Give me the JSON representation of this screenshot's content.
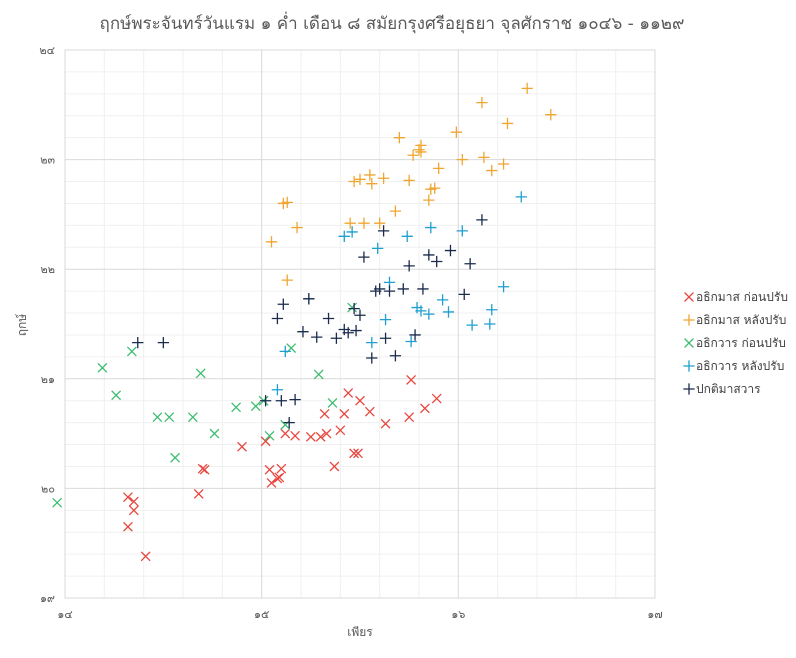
{
  "chart_data": {
    "type": "scatter",
    "title": "ฤกษ์พระจันทร์วันแรม ๑ ค่ำ เดือน ๘ สมัยกรุงศรีอยุธยา จุลศักราช ๑๐๔๖ - ๑๑๒๙",
    "xlabel": "เพียร",
    "ylabel": "ฤกษ์",
    "xlim": [
      14,
      17
    ],
    "ylim": [
      19,
      24
    ],
    "x_ticks": [
      14,
      15,
      16,
      17
    ],
    "x_tick_labels": [
      "๑๔",
      "๑๕",
      "๑๖",
      "๑๗"
    ],
    "y_ticks": [
      19,
      20,
      21,
      22,
      23,
      24
    ],
    "y_tick_labels": [
      "๑๙",
      "๒๐",
      "๒๑",
      "๒๒",
      "๒๓",
      "๒๔"
    ],
    "grid": true,
    "legend_position": "right",
    "series": [
      {
        "name": "อธิกมาส ก่อนปรับ",
        "marker": "x",
        "color": "#e8473f",
        "points": [
          [
            14.32,
            19.65
          ],
          [
            14.35,
            19.8
          ],
          [
            14.41,
            19.38
          ],
          [
            14.32,
            19.92
          ],
          [
            14.68,
            19.95
          ],
          [
            14.7,
            20.18
          ],
          [
            14.71,
            20.17
          ],
          [
            14.9,
            20.38
          ],
          [
            15.02,
            20.43
          ],
          [
            15.04,
            20.17
          ],
          [
            15.05,
            20.05
          ],
          [
            15.08,
            20.09
          ],
          [
            15.09,
            20.1
          ],
          [
            15.1,
            20.18
          ],
          [
            15.12,
            20.5
          ],
          [
            15.17,
            20.48
          ],
          [
            15.25,
            20.47
          ],
          [
            15.3,
            20.47
          ],
          [
            15.32,
            20.68
          ],
          [
            15.33,
            20.5
          ],
          [
            15.37,
            20.2
          ],
          [
            15.4,
            20.53
          ],
          [
            15.42,
            20.68
          ],
          [
            15.44,
            20.87
          ],
          [
            15.47,
            20.32
          ],
          [
            15.49,
            20.32
          ],
          [
            15.5,
            20.8
          ],
          [
            15.55,
            20.7
          ],
          [
            15.63,
            20.59
          ],
          [
            15.75,
            20.65
          ],
          [
            15.83,
            20.73
          ],
          [
            15.89,
            20.82
          ],
          [
            15.76,
            20.99
          ],
          [
            14.35,
            19.88
          ]
        ]
      },
      {
        "name": "อธิกมาส หลังปรับ",
        "marker": "+",
        "color": "#f0a530",
        "points": [
          [
            15.05,
            22.25
          ],
          [
            15.11,
            22.6
          ],
          [
            15.13,
            22.61
          ],
          [
            15.18,
            22.38
          ],
          [
            15.13,
            21.9
          ],
          [
            15.45,
            22.42
          ],
          [
            15.47,
            22.8
          ],
          [
            15.5,
            22.82
          ],
          [
            15.52,
            22.42
          ],
          [
            15.55,
            22.86
          ],
          [
            15.56,
            22.78
          ],
          [
            15.62,
            22.83
          ],
          [
            15.68,
            22.53
          ],
          [
            15.7,
            23.2
          ],
          [
            15.75,
            22.81
          ],
          [
            15.77,
            23.04
          ],
          [
            15.8,
            23.09
          ],
          [
            15.81,
            23.07
          ],
          [
            15.85,
            22.63
          ],
          [
            15.86,
            22.73
          ],
          [
            15.88,
            22.74
          ],
          [
            15.9,
            22.92
          ],
          [
            15.99,
            23.25
          ],
          [
            16.02,
            23.0
          ],
          [
            16.12,
            23.52
          ],
          [
            16.13,
            23.02
          ],
          [
            16.17,
            22.9
          ],
          [
            16.23,
            22.96
          ],
          [
            16.25,
            23.33
          ],
          [
            16.35,
            23.65
          ],
          [
            16.47,
            23.41
          ],
          [
            15.6,
            22.42
          ],
          [
            15.81,
            23.13
          ]
        ]
      },
      {
        "name": "อธิกวาร ก่อนปรับ",
        "marker": "x",
        "color": "#3dbd72",
        "points": [
          [
            13.96,
            19.87
          ],
          [
            14.19,
            21.1
          ],
          [
            14.26,
            20.85
          ],
          [
            14.34,
            21.25
          ],
          [
            14.47,
            20.65
          ],
          [
            14.53,
            20.65
          ],
          [
            14.56,
            20.28
          ],
          [
            14.65,
            20.65
          ],
          [
            14.69,
            21.05
          ],
          [
            14.76,
            20.5
          ],
          [
            14.87,
            20.74
          ],
          [
            14.97,
            20.75
          ],
          [
            15.01,
            20.8
          ],
          [
            15.12,
            20.58
          ],
          [
            15.15,
            21.28
          ],
          [
            15.29,
            21.04
          ],
          [
            15.46,
            21.65
          ],
          [
            15.04,
            20.48
          ],
          [
            15.36,
            20.78
          ]
        ]
      },
      {
        "name": "อธิกวาร หลังปรับ",
        "marker": "+",
        "color": "#1e9fd0",
        "points": [
          [
            15.08,
            20.9
          ],
          [
            15.12,
            21.25
          ],
          [
            15.24,
            21.73
          ],
          [
            15.56,
            21.33
          ],
          [
            15.59,
            22.19
          ],
          [
            15.63,
            21.54
          ],
          [
            15.76,
            21.34
          ],
          [
            15.79,
            21.65
          ],
          [
            15.81,
            21.62
          ],
          [
            15.85,
            21.59
          ],
          [
            15.92,
            21.72
          ],
          [
            15.95,
            21.61
          ],
          [
            16.07,
            21.49
          ],
          [
            16.16,
            21.5
          ],
          [
            16.17,
            21.63
          ],
          [
            16.23,
            21.84
          ],
          [
            16.32,
            22.66
          ],
          [
            15.42,
            22.3
          ],
          [
            15.46,
            22.34
          ],
          [
            15.74,
            22.3
          ],
          [
            15.86,
            22.38
          ],
          [
            16.02,
            22.35
          ],
          [
            15.65,
            21.88
          ]
        ]
      },
      {
        "name": "ปกติมาสวาร",
        "marker": "+",
        "color": "#1a2b4c",
        "points": [
          [
            14.37,
            21.33
          ],
          [
            14.5,
            21.33
          ],
          [
            15.02,
            20.8
          ],
          [
            15.08,
            21.55
          ],
          [
            15.1,
            20.8
          ],
          [
            15.11,
            21.68
          ],
          [
            15.14,
            20.6
          ],
          [
            15.17,
            20.81
          ],
          [
            15.21,
            21.43
          ],
          [
            15.24,
            21.73
          ],
          [
            15.28,
            21.38
          ],
          [
            15.34,
            21.55
          ],
          [
            15.38,
            21.37
          ],
          [
            15.42,
            21.45
          ],
          [
            15.44,
            21.42
          ],
          [
            15.47,
            21.64
          ],
          [
            15.48,
            21.44
          ],
          [
            15.5,
            21.58
          ],
          [
            15.52,
            22.11
          ],
          [
            15.56,
            21.19
          ],
          [
            15.58,
            21.8
          ],
          [
            15.6,
            21.82
          ],
          [
            15.63,
            21.37
          ],
          [
            15.65,
            21.8
          ],
          [
            15.68,
            21.21
          ],
          [
            15.72,
            21.82
          ],
          [
            15.75,
            22.03
          ],
          [
            15.78,
            21.4
          ],
          [
            15.82,
            21.82
          ],
          [
            15.85,
            22.13
          ],
          [
            15.89,
            22.07
          ],
          [
            15.96,
            22.17
          ],
          [
            16.06,
            22.05
          ],
          [
            16.12,
            22.45
          ],
          [
            16.03,
            21.77
          ],
          [
            15.62,
            22.35
          ]
        ]
      }
    ]
  }
}
